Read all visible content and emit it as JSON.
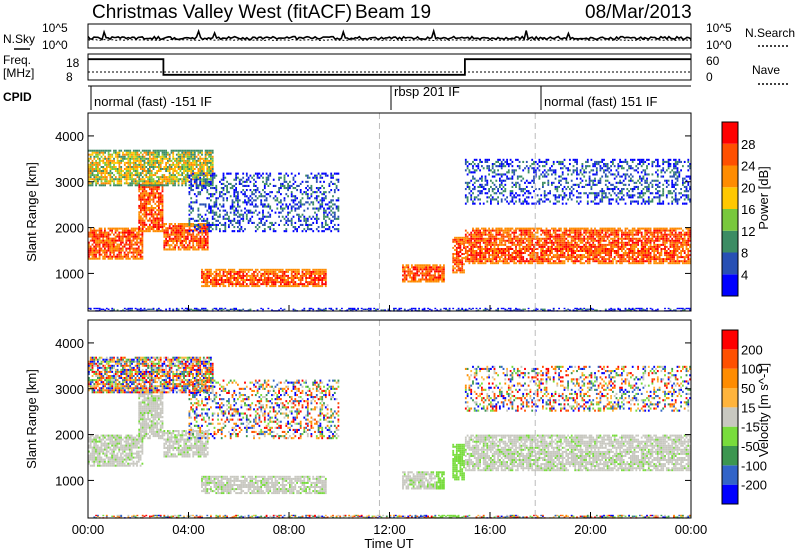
{
  "header": {
    "station": "Christmas Valley West (fitACF)",
    "beam": "Beam 19",
    "date": "08/Mar/2013"
  },
  "top_panel": {
    "nsky_label": "N.Sky",
    "nsearch_label": "N.Search",
    "left_ticks": [
      "10^5",
      "10^0"
    ],
    "right_ticks": [
      "10^5",
      "10^0"
    ]
  },
  "freq_panel": {
    "freq_label": "Freq.",
    "freq_unit": "[MHz]",
    "nave_label": "Nave",
    "left_ticks": [
      "18",
      "8"
    ],
    "right_ticks": [
      "60",
      "0"
    ]
  },
  "cpid": {
    "label": "CPID",
    "segments": [
      "normal (fast) -151 IF",
      "rbsp 201 IF",
      "normal (fast) 151 IF"
    ]
  },
  "axes": {
    "xlabel": "Time UT",
    "x_ticks": [
      "00:00",
      "04:00",
      "08:00",
      "12:00",
      "16:00",
      "20:00",
      "00:00"
    ],
    "ylabel": "Slant Range [km]",
    "y_ticks": [
      "1000",
      "2000",
      "3000",
      "4000"
    ]
  },
  "power_bar": {
    "title": "Power [dB]",
    "ticks": [
      "4",
      "8",
      "12",
      "16",
      "20",
      "24",
      "28"
    ],
    "colors": [
      "#0000ff",
      "#2850b4",
      "#3c8c64",
      "#78c83c",
      "#ffc800",
      "#ff8c00",
      "#ff5000",
      "#ff0000"
    ]
  },
  "velocity_bar": {
    "title": "Velocity [m s^-1]",
    "ticks": [
      "200",
      "100",
      "50",
      "15",
      "-15",
      "-50",
      "-100",
      "-200"
    ],
    "colors": [
      "#0000ff",
      "#3264c8",
      "#3c9650",
      "#78dc3c",
      "#c8c8c0",
      "#ffb43c",
      "#ff8c00",
      "#ff5000",
      "#ff0000"
    ]
  },
  "chart_data": {
    "type": "heatmap",
    "xlabel": "Time UT",
    "ylabel": "Slant Range [km]",
    "xlim_hours": [
      0,
      24
    ],
    "ylim_km": [
      180,
      4500
    ],
    "mode_segments_hours": [
      [
        0,
        11.6
      ],
      [
        11.6,
        17.8
      ],
      [
        17.8,
        24
      ]
    ],
    "frequency_mhz_steps": [
      {
        "from": 0,
        "to": 3.0,
        "freq": 16
      },
      {
        "from": 3.0,
        "to": 15.0,
        "freq": 10
      },
      {
        "from": 15.0,
        "to": 24,
        "freq": 16
      }
    ],
    "power_features": [
      {
        "t0": 0.0,
        "t1": 2.2,
        "r0": 1300,
        "r1": 2000,
        "level": "high"
      },
      {
        "t0": 2.0,
        "t1": 3.0,
        "r0": 1900,
        "r1": 3000,
        "level": "high"
      },
      {
        "t0": 3.0,
        "t1": 4.8,
        "r0": 1500,
        "r1": 2100,
        "level": "high"
      },
      {
        "t0": 0.0,
        "t1": 5.0,
        "r0": 2900,
        "r1": 3700,
        "level": "medium"
      },
      {
        "t0": 4.5,
        "t1": 9.5,
        "r0": 700,
        "r1": 1100,
        "level": "high"
      },
      {
        "t0": 4.0,
        "t1": 10.0,
        "r0": 1900,
        "r1": 3200,
        "level": "low"
      },
      {
        "t0": 12.5,
        "t1": 14.2,
        "r0": 800,
        "r1": 1200,
        "level": "high"
      },
      {
        "t0": 14.5,
        "t1": 15.0,
        "r0": 1000,
        "r1": 1800,
        "level": "high"
      },
      {
        "t0": 15.0,
        "t1": 24.0,
        "r0": 1200,
        "r1": 2000,
        "level": "high"
      },
      {
        "t0": 15.0,
        "t1": 24.0,
        "r0": 2500,
        "r1": 3500,
        "level": "low"
      },
      {
        "t0": 0.0,
        "t1": 24.0,
        "r0": 180,
        "r1": 250,
        "level": "low"
      }
    ]
  }
}
